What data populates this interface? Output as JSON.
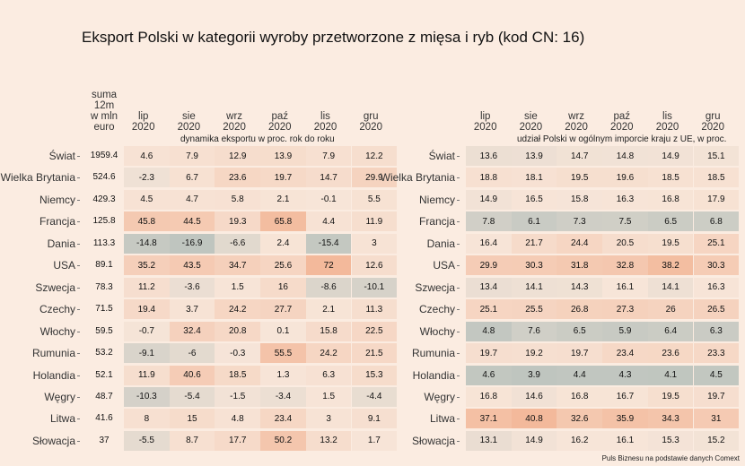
{
  "title": "Eksport Polski w kategorii wyroby przetworzone z mięsa i ryb (kod CN: 16)",
  "source": "Puls Biznesu na podstawie danych Comext",
  "sum_header": [
    "suma",
    "12m",
    "w mln",
    "euro"
  ],
  "months": [
    {
      "m": "lip",
      "y": "2020"
    },
    {
      "m": "sie",
      "y": "2020"
    },
    {
      "m": "wrz",
      "y": "2020"
    },
    {
      "m": "paź",
      "y": "2020"
    },
    {
      "m": "lis",
      "y": "2020"
    },
    {
      "m": "gru",
      "y": "2020"
    }
  ],
  "left_subtitle": "dynamika eksportu w proc. rok do roku",
  "right_subtitle": "udział Polski w ogólnym imporcie kraju z UE, w proc.",
  "colors": {
    "negative": "#bfc5bf",
    "neutral": "#f7e5d8",
    "positive": "#f3b99b",
    "background": "#fbece1"
  },
  "chart_data": [
    {
      "type": "heatmap",
      "title": "dynamika eksportu w proc. rok do roku",
      "rows": [
        "Świat",
        "Wielka Brytania",
        "Niemcy",
        "Francja",
        "Dania",
        "USA",
        "Szwecja",
        "Czechy",
        "Włochy",
        "Rumunia",
        "Holandia",
        "Węgry",
        "Litwa",
        "Słowacja"
      ],
      "sum_12m": [
        "1959.4",
        "524.6",
        "429.3",
        "125.8",
        "113.3",
        "89.1",
        "78.3",
        "71.5",
        "59.5",
        "53.2",
        "52.1",
        "48.7",
        "41.6",
        "37"
      ],
      "values": [
        [
          "4.6",
          "7.9",
          "12.9",
          "13.9",
          "7.9",
          "12.2"
        ],
        [
          "-2.3",
          "6.7",
          "23.6",
          "19.7",
          "14.7",
          "29.9"
        ],
        [
          "4.5",
          "4.7",
          "5.8",
          "2.1",
          "-0.1",
          "5.5"
        ],
        [
          "45.8",
          "44.5",
          "19.3",
          "65.8",
          "4.4",
          "11.9"
        ],
        [
          "-14.8",
          "-16.9",
          "-6.6",
          "2.4",
          "-15.4",
          "3"
        ],
        [
          "35.2",
          "43.5",
          "34.7",
          "25.6",
          "72",
          "12.6"
        ],
        [
          "11.2",
          "-3.6",
          "1.5",
          "16",
          "-8.6",
          "-10.1"
        ],
        [
          "19.4",
          "3.7",
          "24.2",
          "27.7",
          "2.1",
          "11.3"
        ],
        [
          "-0.7",
          "32.4",
          "20.8",
          "0.1",
          "15.8",
          "22.5"
        ],
        [
          "-9.1",
          "-6",
          "-0.3",
          "55.5",
          "24.2",
          "21.5"
        ],
        [
          "11.9",
          "40.6",
          "18.5",
          "1.3",
          "6.3",
          "15.3"
        ],
        [
          "-10.3",
          "-5.4",
          "-1.5",
          "-3.4",
          "1.5",
          "-4.4"
        ],
        [
          "8",
          "15",
          "4.8",
          "23.4",
          "3",
          "9.1"
        ],
        [
          "-5.5",
          "8.7",
          "17.7",
          "50.2",
          "13.2",
          "1.7"
        ]
      ]
    },
    {
      "type": "heatmap",
      "title": "udział Polski w ogólnym imporcie kraju z UE, w proc.",
      "rows": [
        "Świat",
        "Wielka Brytania",
        "Niemcy",
        "Francja",
        "Dania",
        "USA",
        "Szwecja",
        "Czechy",
        "Włochy",
        "Rumunia",
        "Holandia",
        "Węgry",
        "Litwa",
        "Słowacja"
      ],
      "values": [
        [
          "13.6",
          "13.9",
          "14.7",
          "14.8",
          "14.9",
          "15.1"
        ],
        [
          "18.8",
          "18.1",
          "19.5",
          "19.6",
          "18.5",
          "18.5"
        ],
        [
          "14.9",
          "16.5",
          "15.8",
          "16.3",
          "16.8",
          "17.9"
        ],
        [
          "7.8",
          "6.1",
          "7.3",
          "7.5",
          "6.5",
          "6.8"
        ],
        [
          "16.4",
          "21.7",
          "24.4",
          "20.5",
          "19.5",
          "25.1"
        ],
        [
          "29.9",
          "30.3",
          "31.8",
          "32.8",
          "38.2",
          "30.3"
        ],
        [
          "13.4",
          "14.1",
          "14.3",
          "16.1",
          "14.1",
          "16.3"
        ],
        [
          "25.1",
          "25.5",
          "26.8",
          "27.3",
          "26",
          "26.5"
        ],
        [
          "4.8",
          "7.6",
          "6.5",
          "5.9",
          "6.4",
          "6.3"
        ],
        [
          "19.7",
          "19.2",
          "19.7",
          "23.4",
          "23.6",
          "23.3"
        ],
        [
          "4.6",
          "3.9",
          "4.4",
          "4.3",
          "4.1",
          "4.5"
        ],
        [
          "16.8",
          "14.6",
          "16.8",
          "16.7",
          "19.5",
          "19.7"
        ],
        [
          "37.1",
          "40.8",
          "32.6",
          "35.9",
          "34.3",
          "31"
        ],
        [
          "13.1",
          "14.9",
          "16.2",
          "16.1",
          "15.3",
          "15.2"
        ]
      ]
    }
  ]
}
